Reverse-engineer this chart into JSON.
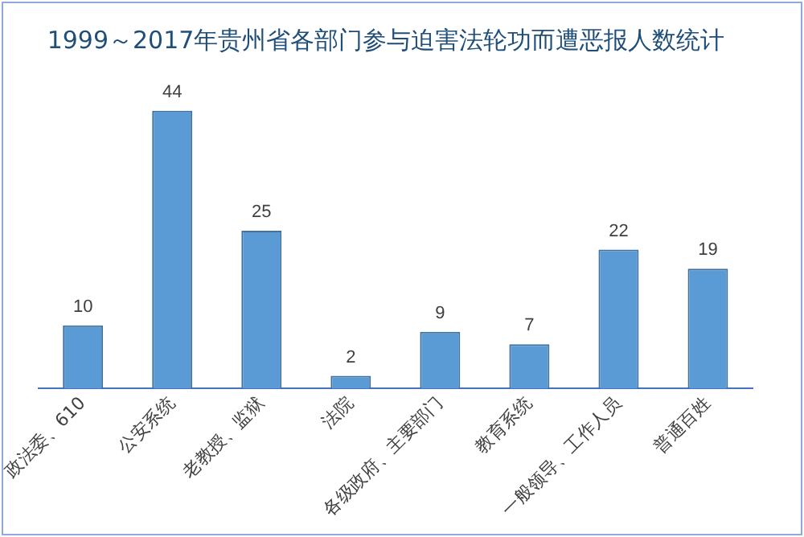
{
  "chart_data": {
    "type": "bar",
    "title": "1999～2017年贵州省各部门参与迫害法轮功而遭恶报人数统计",
    "categories": [
      "政法委、610",
      "公安系统",
      "老教授、监狱",
      "法院",
      "各级政府、主要部门",
      "教育系统",
      "一般领导、工作人员",
      "普通百姓"
    ],
    "values": [
      10,
      44,
      25,
      2,
      9,
      7,
      22,
      19
    ],
    "color": "#5b9bd5",
    "data_labels": true,
    "grid": false,
    "legend": false
  }
}
